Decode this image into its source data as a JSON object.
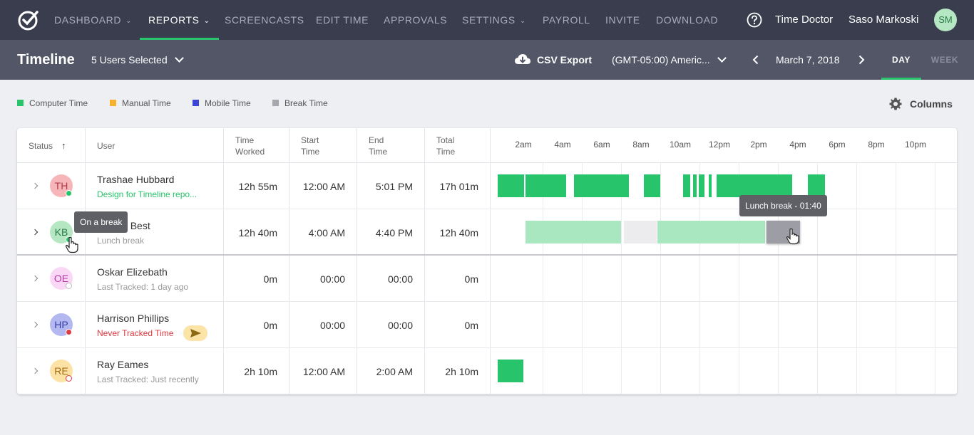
{
  "nav": {
    "items": [
      {
        "label": "DASHBOARD",
        "dropdown": true,
        "active": false
      },
      {
        "label": "REPORTS",
        "dropdown": true,
        "active": true
      },
      {
        "label": "SCREENCASTS",
        "dropdown": false,
        "active": false
      },
      {
        "label": "EDIT TIME",
        "dropdown": false,
        "active": false
      },
      {
        "label": "APPROVALS",
        "dropdown": false,
        "active": false
      },
      {
        "label": "SETTINGS",
        "dropdown": true,
        "active": false
      },
      {
        "label": "PAYROLL",
        "dropdown": false,
        "active": false
      },
      {
        "label": "INVITE",
        "dropdown": false,
        "active": false
      },
      {
        "label": "DOWNLOAD",
        "dropdown": false,
        "active": false
      }
    ],
    "company": "Time Doctor",
    "user_name": "Saso Markoski",
    "user_initials": "SM"
  },
  "toolbar": {
    "title": "Timeline",
    "users_selected": "5 Users Selected",
    "csv_export": "CSV Export",
    "timezone": "(GMT-05:00) Americ...",
    "date": "March 7, 2018",
    "view_tabs": [
      "DAY",
      "WEEK"
    ],
    "active_view": "DAY"
  },
  "legend": {
    "items": [
      {
        "label": "Computer Time",
        "color": "#27c46b"
      },
      {
        "label": "Manual Time",
        "color": "#f6b22b"
      },
      {
        "label": "Mobile Time",
        "color": "#3a45d6"
      },
      {
        "label": "Break Time",
        "color": "#a6a7ae"
      }
    ],
    "columns_label": "Columns"
  },
  "table": {
    "headers": {
      "status": "Status",
      "user": "User",
      "time_worked": [
        "Time",
        "Worked"
      ],
      "start_time": [
        "Start",
        "Time"
      ],
      "end_time": [
        "End",
        "Time"
      ],
      "total_time": [
        "Total",
        "Time"
      ]
    },
    "hours": [
      "2am",
      "4am",
      "6am",
      "8am",
      "10am",
      "12pm",
      "2pm",
      "4pm",
      "6pm",
      "8pm",
      "10pm"
    ],
    "rows": [
      {
        "initials": "TH",
        "name": "Trashae Hubbard",
        "sub": "Design for Timeline repo...",
        "sub_color": "#27c46b",
        "avatar_bg": "#f6b5b9",
        "avatar_fg": "#b23b45",
        "status_color": "#27c46b",
        "status_hollow": false,
        "worked": "12h 55m",
        "start": "12:00 AM",
        "end": "5:01 PM",
        "total": "17h 01m",
        "segments": [
          {
            "from": 0.4,
            "to": 1.75,
            "kind": "computer"
          },
          {
            "from": 1.8,
            "to": 3.9,
            "kind": "computer"
          },
          {
            "from": 4.3,
            "to": 7.1,
            "kind": "computer"
          },
          {
            "from": 7.85,
            "to": 8.7,
            "kind": "computer"
          },
          {
            "from": 9.85,
            "to": 10.2,
            "kind": "computer"
          },
          {
            "from": 10.35,
            "to": 10.55,
            "kind": "computer"
          },
          {
            "from": 10.65,
            "to": 10.95,
            "kind": "computer"
          },
          {
            "from": 11.15,
            "to": 11.3,
            "kind": "computer"
          },
          {
            "from": 11.55,
            "to": 15.4,
            "kind": "computer"
          },
          {
            "from": 16.2,
            "to": 17.1,
            "kind": "computer"
          }
        ]
      },
      {
        "initials": "KB",
        "name": "Kaylee Best",
        "sub": "Lunch break",
        "sub_color": "#999999",
        "avatar_bg": "#b6e7c3",
        "avatar_fg": "#2a7a45",
        "status_color": "#27c46b",
        "status_hollow": false,
        "worked": "12h 40m",
        "start": "4:00 AM",
        "end": "4:40 PM",
        "total": "12h 40m",
        "segments": [
          {
            "from": 1.8,
            "to": 6.7,
            "kind": "computer-light"
          },
          {
            "from": 6.85,
            "to": 8.5,
            "kind": "idle"
          },
          {
            "from": 8.55,
            "to": 14.05,
            "kind": "computer-light"
          },
          {
            "from": 14.1,
            "to": 15.8,
            "kind": "break"
          }
        ]
      },
      {
        "initials": "OE",
        "name": "Oskar Elizebath",
        "sub": "Last Tracked: 1 day ago",
        "sub_color": "#999999",
        "avatar_bg": "#fbd7f6",
        "avatar_fg": "#b43aa6",
        "status_color": "#bbbbbb",
        "status_hollow": true,
        "worked": "0m",
        "start": "00:00",
        "end": "00:00",
        "total": "0m",
        "segments": []
      },
      {
        "initials": "HP",
        "name": "Harrison Phillips",
        "sub": "Never Tracked Time",
        "sub_color": "#e0393e",
        "avatar_bg": "#b4b8f0",
        "avatar_fg": "#3a3ea8",
        "status_color": "#e0393e",
        "status_hollow": false,
        "send_icon": true,
        "worked": "0m",
        "start": "00:00",
        "end": "00:00",
        "total": "0m",
        "segments": []
      },
      {
        "initials": "RE",
        "name": "Ray Eames",
        "sub": "Last Tracked: Just recently",
        "sub_color": "#999999",
        "avatar_bg": "#fde2a6",
        "avatar_fg": "#a46a10",
        "status_color": "#e0393e",
        "status_hollow": true,
        "worked": "2h 10m",
        "start": "12:00 AM",
        "end": "2:00 AM",
        "total": "2h 10m",
        "segments": [
          {
            "from": 0.4,
            "to": 1.7,
            "kind": "computer"
          }
        ]
      }
    ]
  },
  "tooltips": {
    "on_break": "On a break",
    "lunch_break": "Lunch break - 01:40"
  }
}
